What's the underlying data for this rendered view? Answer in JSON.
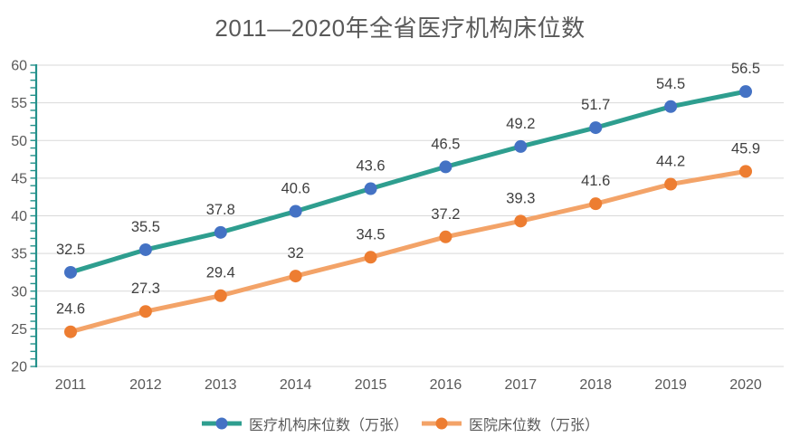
{
  "title": "2011—2020年全省医疗机构床位数",
  "chart_data": {
    "type": "line",
    "title": "2011—2020年全省医疗机构床位数",
    "x": [
      "2011",
      "2012",
      "2013",
      "2014",
      "2015",
      "2016",
      "2017",
      "2018",
      "2019",
      "2020"
    ],
    "series": [
      {
        "name": "医疗机构床位数（万张）",
        "values": [
          32.5,
          35.5,
          37.8,
          40.6,
          43.6,
          46.5,
          49.2,
          51.7,
          54.5,
          56.5
        ],
        "line_color": "#2E9E8F",
        "marker_color": "#4472C4"
      },
      {
        "name": "医院床位数（万张）",
        "values": [
          24.6,
          27.3,
          29.4,
          32,
          34.5,
          37.2,
          39.3,
          41.6,
          44.2,
          45.9
        ],
        "line_color": "#F3A368",
        "marker_color": "#ED7D31"
      }
    ],
    "ylim": [
      20,
      60
    ],
    "yticks": [
      20,
      25,
      30,
      35,
      40,
      45,
      50,
      55,
      60
    ],
    "minor_tick_step": 1,
    "grid": true,
    "legend_position": "bottom",
    "axis_color": "#23918B",
    "gridline_color": "#D9D9D9",
    "data_label_color": "#404040",
    "tick_label_color": "#595959",
    "title_color": "#595959"
  }
}
